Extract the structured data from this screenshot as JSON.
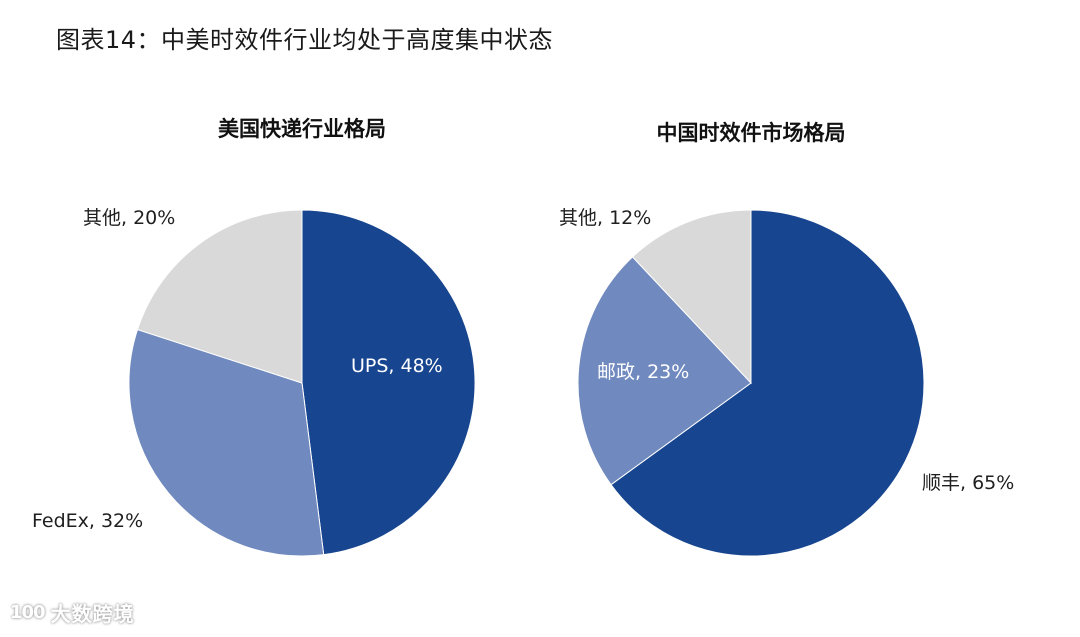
{
  "figure": {
    "title": "图表14：中美时效件行业均处于高度集中状态"
  },
  "watermark": {
    "logo": "100",
    "text": "大数跨境"
  },
  "colors": {
    "dark_blue": "#17458F",
    "light_blue": "#7089BE",
    "gray": "#D9D9D9"
  },
  "charts": [
    {
      "title": "美国快递行业格局",
      "labels": [
        {
          "text": "UPS, 48%"
        },
        {
          "text": "FedEx, 32%"
        },
        {
          "text": "其他, 20%"
        }
      ]
    },
    {
      "title": "中国时效件市场格局",
      "labels": [
        {
          "text": "顺丰, 65%"
        },
        {
          "text": "邮政, 23%"
        },
        {
          "text": "其他, 12%"
        }
      ]
    }
  ],
  "chart_data": [
    {
      "type": "pie",
      "title": "美国快递行业格局",
      "categories": [
        "UPS",
        "FedEx",
        "其他"
      ],
      "values": [
        48,
        32,
        20
      ],
      "unit": "%",
      "colors": [
        "#17458F",
        "#7089BE",
        "#D9D9D9"
      ],
      "start_angle": "12 o'clock, clockwise",
      "legend": "none (data labels: category, percentage)"
    },
    {
      "type": "pie",
      "title": "中国时效件市场格局",
      "categories": [
        "顺丰",
        "邮政",
        "其他"
      ],
      "values": [
        65,
        23,
        12
      ],
      "unit": "%",
      "colors": [
        "#17458F",
        "#7089BE",
        "#D9D9D9"
      ],
      "start_angle": "12 o'clock, clockwise",
      "legend": "none (data labels: category, percentage)"
    }
  ]
}
